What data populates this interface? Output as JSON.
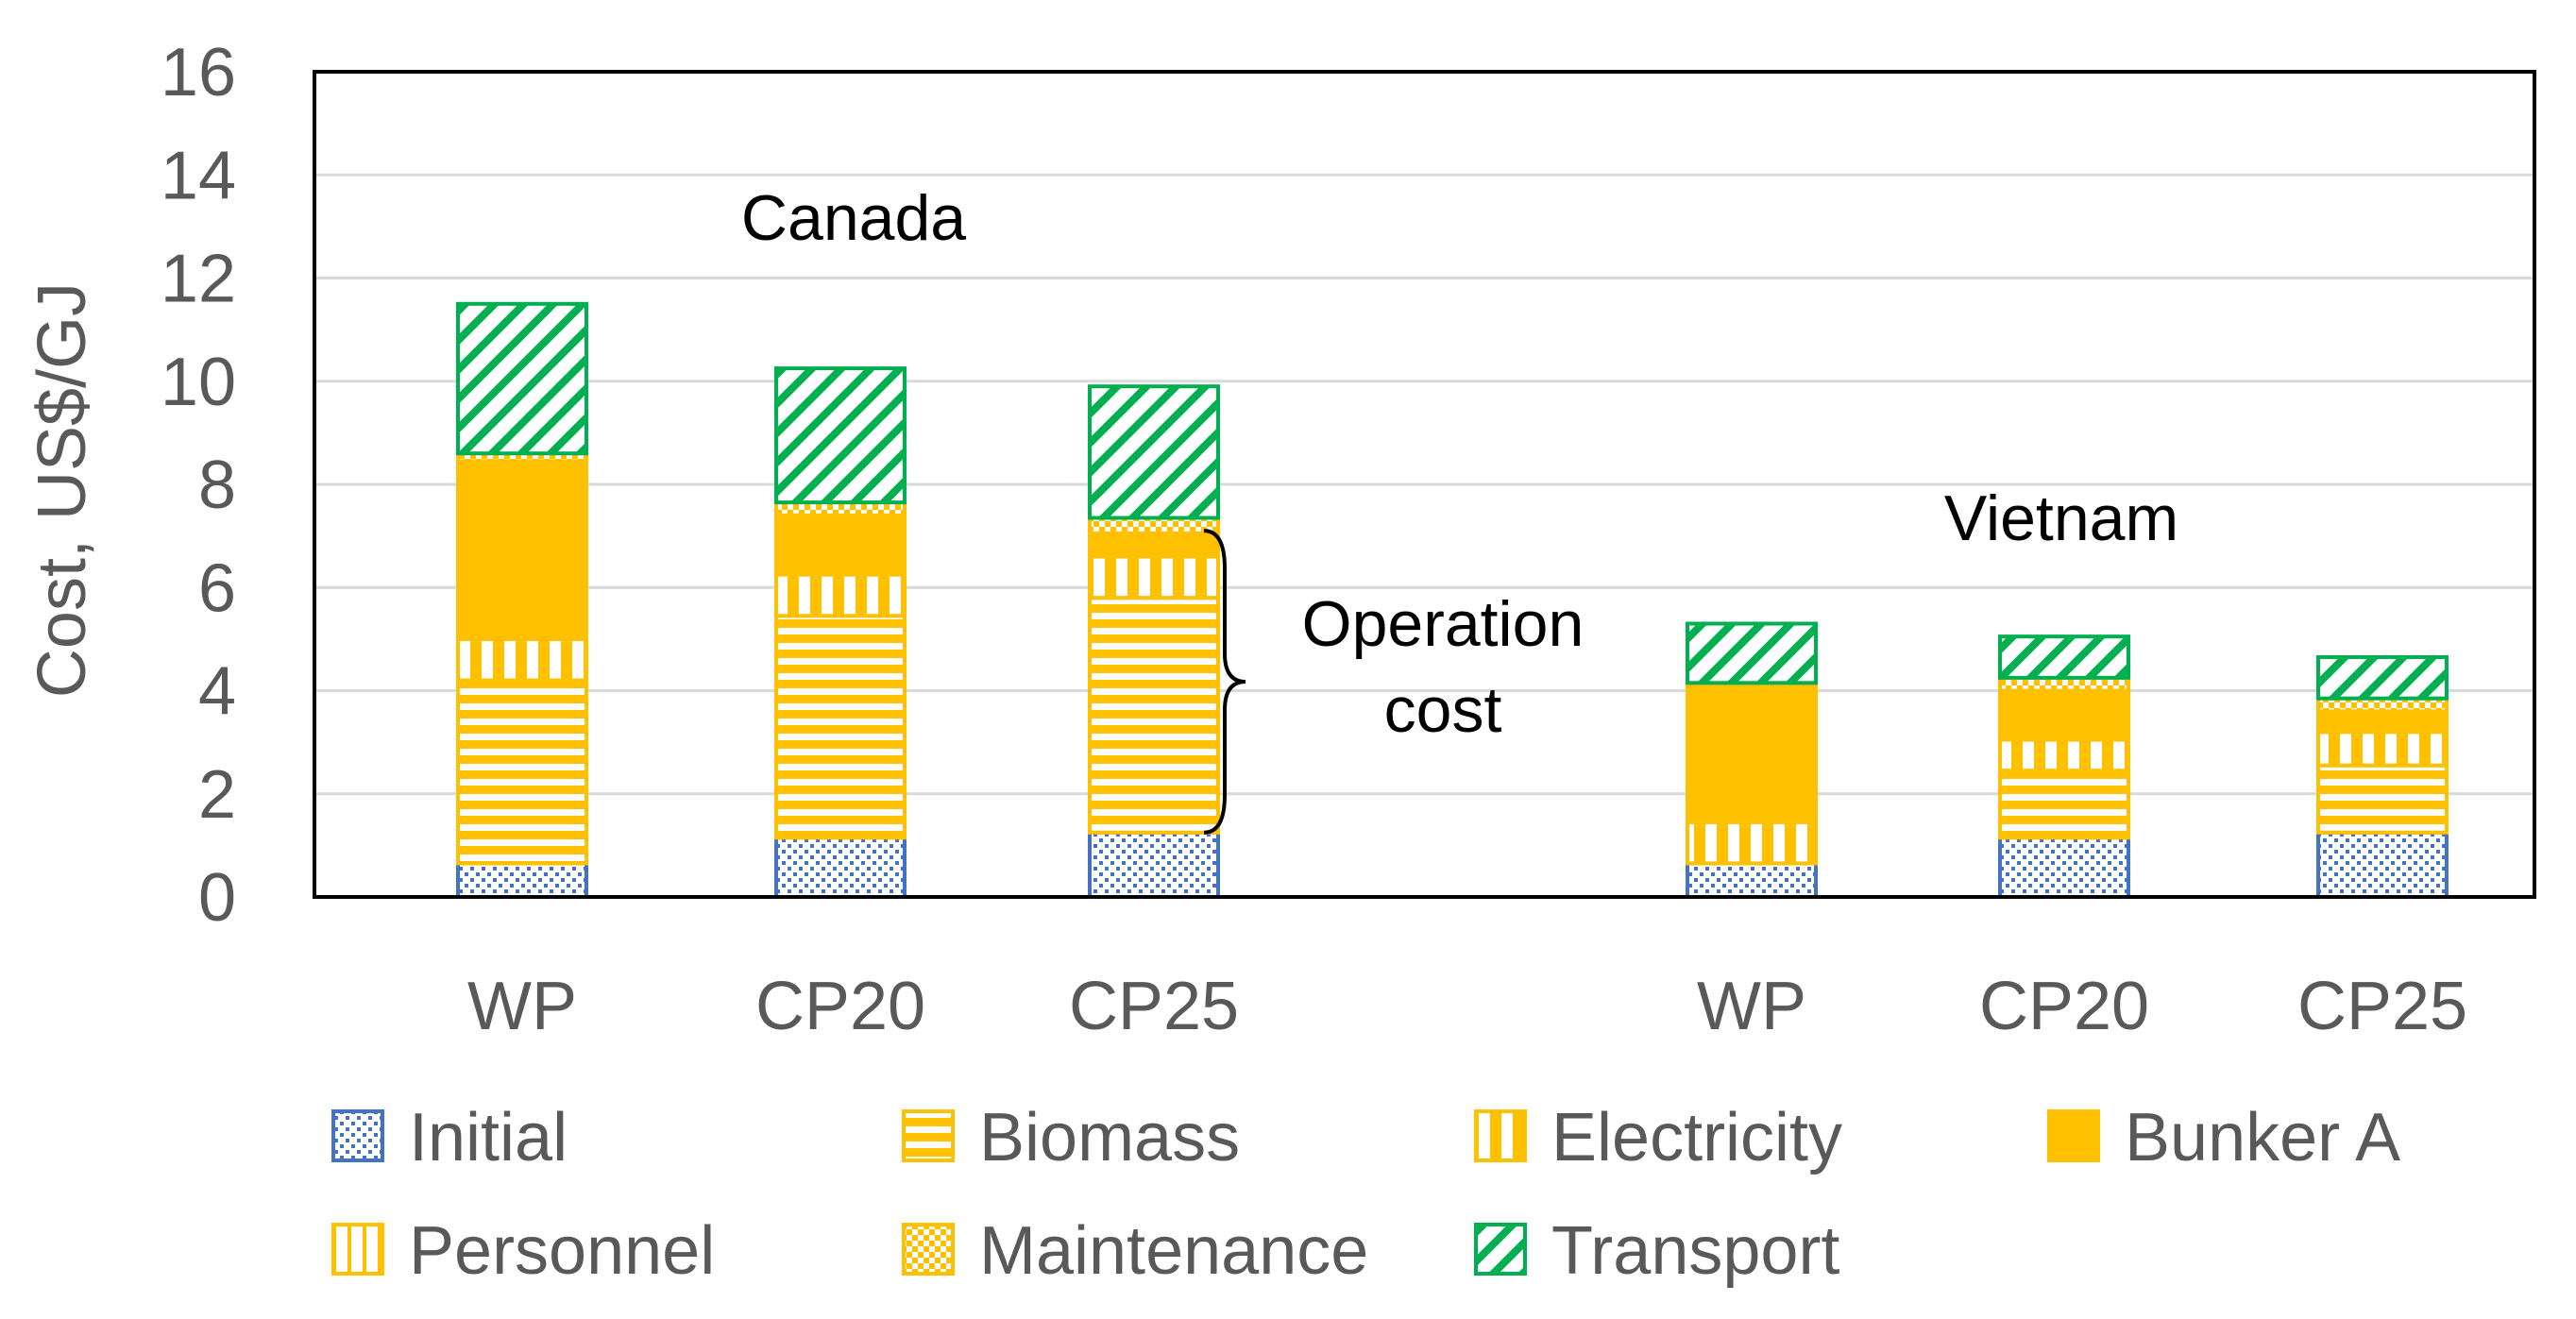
{
  "chart_data": {
    "type": "bar",
    "stacked": true,
    "title": "",
    "xlabel": "",
    "ylabel": "Cost, US$/GJ",
    "ylim": [
      0,
      16
    ],
    "ytick_step": 2,
    "grid": true,
    "legend_position": "bottom",
    "groups": [
      "Canada",
      "Vietnam"
    ],
    "categories": [
      "WP",
      "CP20",
      "CP25",
      "WP",
      "CP20",
      "CP25"
    ],
    "category_group": [
      "Canada",
      "Canada",
      "Canada",
      "Vietnam",
      "Vietnam",
      "Vietnam"
    ],
    "series": [
      {
        "name": "Initial",
        "key": "initial",
        "color": "#4472C4",
        "values": [
          0.65,
          1.15,
          1.25,
          0.65,
          1.15,
          1.25
        ]
      },
      {
        "name": "Biomass",
        "key": "biomass",
        "color": "#FFC000",
        "values": [
          3.55,
          4.3,
          4.55,
          0.0,
          1.3,
          1.3
        ]
      },
      {
        "name": "Electricity",
        "key": "electricity",
        "color": "#FFC000",
        "values": [
          0.8,
          0.8,
          0.8,
          0.8,
          0.6,
          0.65
        ]
      },
      {
        "name": "Bunker A",
        "key": "bunker",
        "color": "#FFC000",
        "values": [
          3.4,
          1.1,
          0.4,
          2.6,
          0.9,
          0.35
        ]
      },
      {
        "name": "Personnel",
        "key": "personnel",
        "color": "#FFC000",
        "values": [
          0.05,
          0.05,
          0.05,
          0.05,
          0.05,
          0.05
        ]
      },
      {
        "name": "Maintenance",
        "key": "maintenance",
        "color": "#FFC000",
        "values": [
          0.15,
          0.25,
          0.3,
          0.05,
          0.25,
          0.25
        ]
      },
      {
        "name": "Transport",
        "key": "transport",
        "color": "#00B050",
        "values": [
          2.9,
          2.6,
          2.55,
          1.15,
          0.8,
          0.8
        ]
      }
    ],
    "annotations": [
      {
        "text": "Canada"
      },
      {
        "text": "Vietnam"
      },
      {
        "text_lines": [
          "Operation",
          "cost"
        ],
        "brace_from": 1.25,
        "brace_to": 7.1
      }
    ]
  }
}
